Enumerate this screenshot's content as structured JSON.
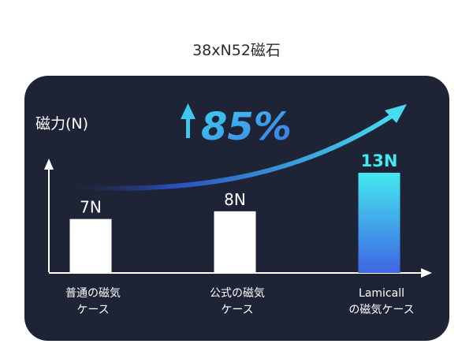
{
  "title": "38xN52磁石",
  "highlight": {
    "text": "85%",
    "icon": "up-arrow-icon"
  },
  "colors": {
    "card_bg": "#1e2436",
    "bar": "#ffffff",
    "highlight_top": "#45e8f0",
    "highlight_bottom": "#3e65e2",
    "axis": "#ffffff"
  },
  "chart_data": {
    "type": "bar",
    "ylabel": "磁力(N)",
    "xlabel": "",
    "categories": [
      [
        "普通の磁気",
        "ケース"
      ],
      [
        "公式の磁気",
        "ケース"
      ],
      [
        "Lamicall",
        "の磁気ケース"
      ]
    ],
    "values": [
      7,
      8,
      13
    ],
    "value_labels": [
      "7N",
      "8N",
      "13N"
    ],
    "highlighted_index": 2
  }
}
